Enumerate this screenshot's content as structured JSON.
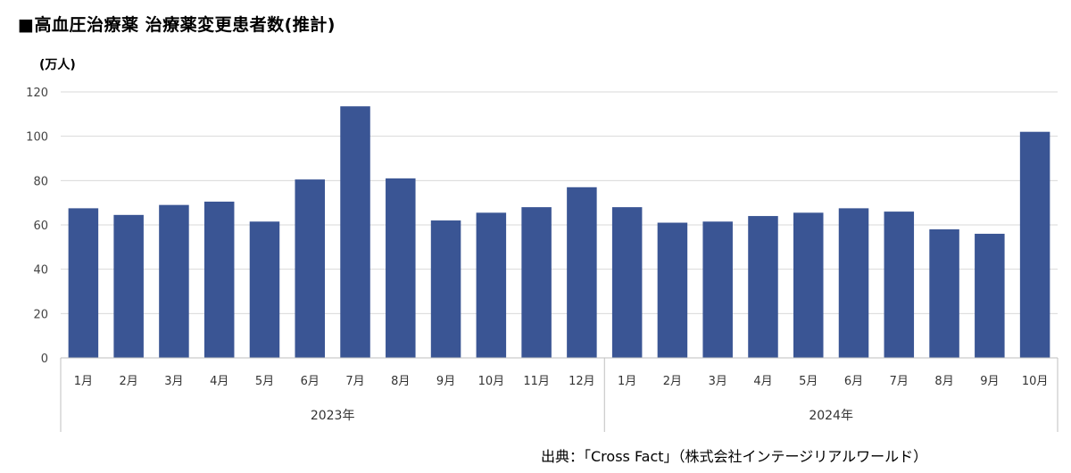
{
  "header": {
    "title": "■高血圧治療薬 治療薬変更患者数(推計)",
    "unit": "(万人)"
  },
  "footer": {
    "source": "出典：「Cross Fact」（株式会社インテージリアルワールド）"
  },
  "chart_data": {
    "type": "bar",
    "title": "■高血圧治療薬 治療薬変更患者数(推計)",
    "ylabel": "(万人)",
    "ylim": [
      0,
      120
    ],
    "yticks": [
      0,
      20,
      40,
      60,
      80,
      100,
      120
    ],
    "grid": true,
    "bar_color": "#3a5594",
    "categories": [
      "1月",
      "2月",
      "3月",
      "4月",
      "5月",
      "6月",
      "7月",
      "8月",
      "9月",
      "10月",
      "11月",
      "12月",
      "1月",
      "2月",
      "3月",
      "4月",
      "5月",
      "6月",
      "7月",
      "8月",
      "9月",
      "10月"
    ],
    "groups": [
      {
        "label": "2023年",
        "count": 12
      },
      {
        "label": "2024年",
        "count": 10
      }
    ],
    "values": [
      67.5,
      64.5,
      69,
      70.5,
      61.5,
      80.5,
      113.5,
      81,
      62,
      65.5,
      68,
      77,
      68,
      61,
      61.5,
      64,
      65.5,
      67.5,
      66,
      58,
      56,
      102
    ]
  }
}
